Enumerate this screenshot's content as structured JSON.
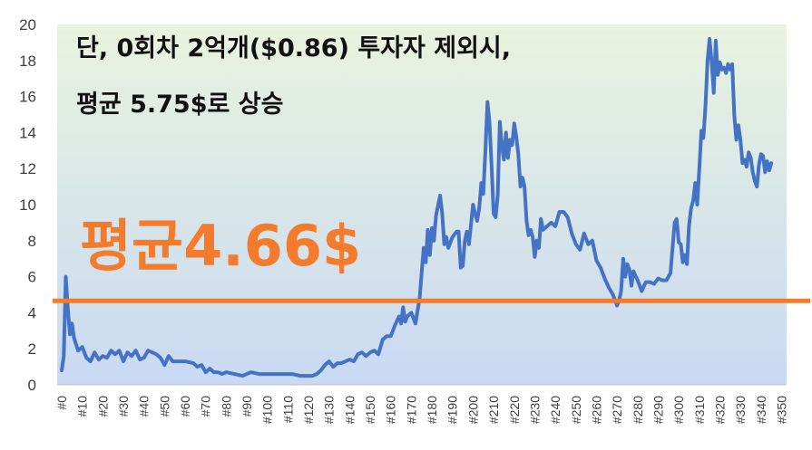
{
  "chart_data": {
    "type": "line",
    "title": "",
    "xlabel": "",
    "ylabel": "",
    "ylim": [
      0,
      20
    ],
    "grid": false,
    "legend": "none",
    "x_tick_labels": [
      "#0",
      "#10",
      "#20",
      "#30",
      "#40",
      "#50",
      "#60",
      "#70",
      "#80",
      "#90",
      "#100",
      "#110",
      "#120",
      "#130",
      "#140",
      "#150",
      "#160",
      "#170",
      "#180",
      "#190",
      "#200",
      "#210",
      "#220",
      "#230",
      "#240",
      "#250",
      "#260",
      "#270",
      "#280",
      "#290",
      "#300",
      "#310",
      "#320",
      "#330",
      "#340",
      "#350"
    ],
    "y_ticks": [
      0,
      2,
      4,
      6,
      8,
      10,
      12,
      14,
      16,
      18,
      20
    ],
    "x_range": [
      0,
      352
    ],
    "series": [
      {
        "color": "#4472c4",
        "points": [
          [
            0,
            0.8
          ],
          [
            1,
            1.6
          ],
          [
            2,
            6.0
          ],
          [
            3,
            4.2
          ],
          [
            4,
            2.8
          ],
          [
            5,
            3.4
          ],
          [
            6,
            2.6
          ],
          [
            8,
            1.9
          ],
          [
            10,
            2.1
          ],
          [
            12,
            1.5
          ],
          [
            14,
            1.3
          ],
          [
            16,
            1.8
          ],
          [
            18,
            1.4
          ],
          [
            20,
            1.6
          ],
          [
            22,
            1.5
          ],
          [
            24,
            1.9
          ],
          [
            26,
            1.7
          ],
          [
            28,
            1.9
          ],
          [
            30,
            1.3
          ],
          [
            32,
            1.8
          ],
          [
            34,
            1.6
          ],
          [
            36,
            1.9
          ],
          [
            38,
            1.4
          ],
          [
            40,
            1.5
          ],
          [
            42,
            1.9
          ],
          [
            44,
            1.8
          ],
          [
            46,
            1.7
          ],
          [
            48,
            1.5
          ],
          [
            50,
            1.1
          ],
          [
            52,
            1.6
          ],
          [
            54,
            1.3
          ],
          [
            56,
            1.3
          ],
          [
            60,
            1.3
          ],
          [
            64,
            1.2
          ],
          [
            66,
            1.0
          ],
          [
            68,
            1.1
          ],
          [
            70,
            0.7
          ],
          [
            72,
            0.9
          ],
          [
            74,
            0.7
          ],
          [
            76,
            0.7
          ],
          [
            78,
            0.6
          ],
          [
            80,
            0.7
          ],
          [
            84,
            0.6
          ],
          [
            88,
            0.5
          ],
          [
            92,
            0.7
          ],
          [
            96,
            0.6
          ],
          [
            100,
            0.6
          ],
          [
            104,
            0.6
          ],
          [
            108,
            0.6
          ],
          [
            112,
            0.6
          ],
          [
            116,
            0.5
          ],
          [
            120,
            0.5
          ],
          [
            122,
            0.5
          ],
          [
            124,
            0.6
          ],
          [
            126,
            0.8
          ],
          [
            128,
            1.1
          ],
          [
            130,
            1.3
          ],
          [
            132,
            1.0
          ],
          [
            134,
            1.2
          ],
          [
            136,
            1.2
          ],
          [
            138,
            1.3
          ],
          [
            140,
            1.4
          ],
          [
            142,
            1.3
          ],
          [
            144,
            1.7
          ],
          [
            146,
            1.8
          ],
          [
            148,
            1.6
          ],
          [
            150,
            1.8
          ],
          [
            152,
            1.9
          ],
          [
            154,
            1.7
          ],
          [
            156,
            2.5
          ],
          [
            158,
            2.7
          ],
          [
            160,
            2.7
          ],
          [
            162,
            3.3
          ],
          [
            164,
            3.8
          ],
          [
            165,
            3.4
          ],
          [
            166,
            4.3
          ],
          [
            167,
            3.5
          ],
          [
            168,
            3.8
          ],
          [
            170,
            4.0
          ],
          [
            172,
            3.4
          ],
          [
            174,
            4.8
          ],
          [
            176,
            7.6
          ],
          [
            177,
            6.8
          ],
          [
            178,
            8.6
          ],
          [
            179,
            7.2
          ],
          [
            180,
            8.7
          ],
          [
            181,
            8.0
          ],
          [
            182,
            9.4
          ],
          [
            184,
            10.5
          ],
          [
            185,
            9.5
          ],
          [
            186,
            7.8
          ],
          [
            187,
            8.2
          ],
          [
            188,
            7.6
          ],
          [
            190,
            8.2
          ],
          [
            192,
            8.5
          ],
          [
            193,
            8.5
          ],
          [
            194,
            6.5
          ],
          [
            195,
            6.6
          ],
          [
            196,
            8.0
          ],
          [
            197,
            8.5
          ],
          [
            198,
            7.8
          ],
          [
            200,
            10.0
          ],
          [
            201,
            9.5
          ],
          [
            202,
            9.1
          ],
          [
            203,
            9.8
          ],
          [
            204,
            11.2
          ],
          [
            205,
            10.6
          ],
          [
            206,
            13.0
          ],
          [
            207,
            15.7
          ],
          [
            208,
            14.6
          ],
          [
            209,
            12.2
          ],
          [
            210,
            9.5
          ],
          [
            211,
            9.3
          ],
          [
            212,
            10.5
          ],
          [
            213,
            14.6
          ],
          [
            214,
            13.3
          ],
          [
            215,
            12.5
          ],
          [
            216,
            14.0
          ],
          [
            217,
            12.6
          ],
          [
            218,
            13.6
          ],
          [
            219,
            13.3
          ],
          [
            220,
            14.5
          ],
          [
            221,
            13.8
          ],
          [
            222,
            12.8
          ],
          [
            223,
            11.0
          ],
          [
            224,
            11.5
          ],
          [
            225,
            11.0
          ],
          [
            226,
            9.1
          ],
          [
            227,
            8.3
          ],
          [
            228,
            8.6
          ],
          [
            229,
            8.2
          ],
          [
            230,
            7.1
          ],
          [
            231,
            8.0
          ],
          [
            232,
            7.6
          ],
          [
            233,
            9.2
          ],
          [
            234,
            8.6
          ],
          [
            236,
            8.8
          ],
          [
            238,
            9.0
          ],
          [
            240,
            8.8
          ],
          [
            242,
            9.6
          ],
          [
            244,
            9.6
          ],
          [
            246,
            9.3
          ],
          [
            248,
            8.4
          ],
          [
            250,
            7.8
          ],
          [
            252,
            7.5
          ],
          [
            254,
            8.4
          ],
          [
            256,
            7.8
          ],
          [
            258,
            8.0
          ],
          [
            260,
            6.9
          ],
          [
            262,
            6.5
          ],
          [
            264,
            5.9
          ],
          [
            266,
            5.4
          ],
          [
            268,
            5.0
          ],
          [
            270,
            4.4
          ],
          [
            271,
            4.7
          ],
          [
            272,
            5.2
          ],
          [
            273,
            7.0
          ],
          [
            274,
            6.0
          ],
          [
            275,
            6.7
          ],
          [
            276,
            6.4
          ],
          [
            277,
            5.5
          ],
          [
            278,
            6.3
          ],
          [
            280,
            5.8
          ],
          [
            282,
            5.2
          ],
          [
            284,
            5.7
          ],
          [
            286,
            5.7
          ],
          [
            288,
            5.6
          ],
          [
            290,
            5.9
          ],
          [
            292,
            5.8
          ],
          [
            294,
            5.8
          ],
          [
            296,
            6.2
          ],
          [
            298,
            9.0
          ],
          [
            299,
            9.2
          ],
          [
            300,
            7.9
          ],
          [
            301,
            7.8
          ],
          [
            302,
            6.8
          ],
          [
            303,
            7.2
          ],
          [
            304,
            6.7
          ],
          [
            305,
            8.8
          ],
          [
            306,
            9.8
          ],
          [
            307,
            10.2
          ],
          [
            308,
            11.2
          ],
          [
            309,
            10.0
          ],
          [
            310,
            12.0
          ],
          [
            311,
            14.1
          ],
          [
            312,
            13.7
          ],
          [
            313,
            15.5
          ],
          [
            314,
            18.0
          ],
          [
            315,
            19.2
          ],
          [
            316,
            17.9
          ],
          [
            317,
            16.2
          ],
          [
            318,
            19.1
          ],
          [
            319,
            17.2
          ],
          [
            320,
            17.9
          ],
          [
            321,
            17.5
          ],
          [
            322,
            17.6
          ],
          [
            323,
            17.3
          ],
          [
            324,
            17.8
          ],
          [
            325,
            17.5
          ],
          [
            326,
            17.8
          ],
          [
            327,
            15.0
          ],
          [
            328,
            13.6
          ],
          [
            329,
            14.4
          ],
          [
            330,
            13.6
          ],
          [
            331,
            12.3
          ],
          [
            332,
            12.5
          ],
          [
            333,
            12.1
          ],
          [
            334,
            12.9
          ],
          [
            335,
            12.6
          ],
          [
            336,
            11.8
          ],
          [
            337,
            11.3
          ],
          [
            338,
            11.0
          ],
          [
            339,
            12.2
          ],
          [
            340,
            12.8
          ],
          [
            341,
            12.7
          ],
          [
            342,
            11.8
          ],
          [
            343,
            12.4
          ],
          [
            344,
            11.9
          ],
          [
            345,
            12.3
          ]
        ]
      }
    ],
    "reference_line": {
      "value": 4.66,
      "color": "#ed7d31"
    },
    "annotations": {
      "line1": "단, 0회차 2억개($0.86) 투자자 제외시,",
      "line2": "평균 5.75$로 상승",
      "average": "평균4.66$"
    },
    "colors": {
      "plot_bg_top": "#e8f3de",
      "plot_bg_bottom": "#c9d9f3",
      "axis": "#bfbfbf",
      "annotation_main": "#111111",
      "annotation_avg": "#f47a2c"
    }
  }
}
